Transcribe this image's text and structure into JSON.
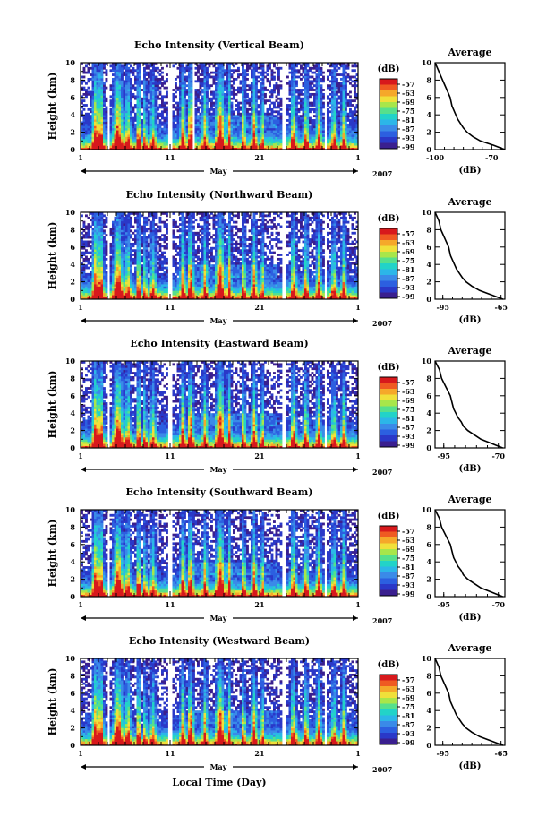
{
  "chart_data": [
    {
      "type": "heatmap",
      "title": "Echo Intensity (Vertical Beam)",
      "ylabel": "Height (km)",
      "y_ticks": [
        "0",
        "2",
        "4",
        "6",
        "8",
        "10"
      ],
      "ylim": [
        0,
        10
      ],
      "x_ticks": [
        "1",
        "11",
        "21",
        "1"
      ],
      "month_label": "May",
      "year_label": "2007",
      "colorbar_unit": "(dB)",
      "colorbar_ticks": [
        "-57",
        "-63",
        "-69",
        "-75",
        "-81",
        "-87",
        "-93",
        "-99"
      ],
      "data_gaps_days": [
        [
          4.0,
          4.3
        ],
        [
          10.8,
          11.3
        ],
        [
          13.6,
          13.8
        ],
        [
          23.6,
          24.0
        ],
        [
          28.3,
          28.6
        ]
      ],
      "average": {
        "title": "Average",
        "xlabel": "(dB)",
        "x_ticks": [
          "-100",
          "-70"
        ],
        "xlim": [
          -100,
          -63
        ],
        "height_km": [
          0,
          0.5,
          1,
          1.5,
          2,
          2.5,
          3,
          3.5,
          4,
          4.5,
          5,
          5.5,
          6,
          6.5,
          7,
          7.5,
          8,
          8.5,
          9,
          9.5,
          10
        ],
        "values_db": [
          -63,
          -69,
          -76,
          -80,
          -83,
          -85,
          -86.5,
          -88,
          -89,
          -90,
          -91,
          -91.5,
          -92,
          -93,
          -94,
          -95,
          -96,
          -97,
          -98,
          -99,
          -100
        ]
      }
    },
    {
      "type": "heatmap",
      "title": "Echo Intensity (Northward Beam)",
      "ylabel": "Height (km)",
      "y_ticks": [
        "0",
        "2",
        "4",
        "6",
        "8",
        "10"
      ],
      "ylim": [
        0,
        10
      ],
      "x_ticks": [
        "1",
        "11",
        "21",
        "1"
      ],
      "month_label": "May",
      "year_label": "2007",
      "colorbar_unit": "(dB)",
      "colorbar_ticks": [
        "-57",
        "-63",
        "-69",
        "-75",
        "-81",
        "-87",
        "-93",
        "-99"
      ],
      "data_gaps_days": [
        [
          4.0,
          4.3
        ],
        [
          10.8,
          11.3
        ],
        [
          23.6,
          24.0
        ],
        [
          28.3,
          28.6
        ]
      ],
      "average": {
        "title": "Average",
        "xlabel": "(dB)",
        "x_ticks": [
          "-95",
          "-65"
        ],
        "xlim": [
          -99,
          -63
        ],
        "height_km": [
          0,
          0.5,
          1,
          1.5,
          2,
          2.5,
          3,
          3.5,
          4,
          4.5,
          5,
          5.5,
          6,
          6.5,
          7,
          7.5,
          8,
          8.5,
          9,
          9.5,
          10
        ],
        "values_db": [
          -64,
          -70,
          -76,
          -80,
          -83,
          -85,
          -86.5,
          -88,
          -89,
          -90,
          -91,
          -91.5,
          -92,
          -93,
          -94,
          -95,
          -96,
          -96.5,
          -97,
          -98,
          -99
        ]
      }
    },
    {
      "type": "heatmap",
      "title": "Echo Intensity (Eastward Beam)",
      "ylabel": "Height (km)",
      "y_ticks": [
        "0",
        "2",
        "4",
        "6",
        "8",
        "10"
      ],
      "ylim": [
        0,
        10
      ],
      "x_ticks": [
        "1",
        "11",
        "21",
        "1"
      ],
      "month_label": "May",
      "year_label": "2007",
      "colorbar_unit": "(dB)",
      "colorbar_ticks": [
        "-57",
        "-63",
        "-69",
        "-75",
        "-81",
        "-87",
        "-93",
        "-99"
      ],
      "data_gaps_days": [
        [
          4.0,
          4.3
        ],
        [
          10.8,
          11.3
        ],
        [
          23.6,
          24.0
        ],
        [
          28.3,
          28.6
        ]
      ],
      "average": {
        "title": "Average",
        "xlabel": "(dB)",
        "x_ticks": [
          "-95",
          "-70"
        ],
        "xlim": [
          -99,
          -67
        ],
        "height_km": [
          0,
          0.5,
          1,
          1.5,
          2,
          2.5,
          3,
          3.5,
          4,
          4.5,
          5,
          5.5,
          6,
          6.5,
          7,
          7.5,
          8,
          8.5,
          9,
          9.5,
          10
        ],
        "values_db": [
          -68,
          -73,
          -78,
          -81,
          -84,
          -86,
          -87,
          -88.5,
          -89.5,
          -90.5,
          -91,
          -91.5,
          -92,
          -93,
          -94,
          -95,
          -96,
          -96.5,
          -97,
          -98,
          -99
        ]
      }
    },
    {
      "type": "heatmap",
      "title": "Echo Intensity (Southward Beam)",
      "ylabel": "Height (km)",
      "y_ticks": [
        "0",
        "2",
        "4",
        "6",
        "8",
        "10"
      ],
      "ylim": [
        0,
        10
      ],
      "x_ticks": [
        "1",
        "11",
        "21",
        "1"
      ],
      "month_label": "May",
      "year_label": "2007",
      "colorbar_unit": "(dB)",
      "colorbar_ticks": [
        "-57",
        "-63",
        "-69",
        "-75",
        "-81",
        "-87",
        "-93",
        "-99"
      ],
      "data_gaps_days": [
        [
          4.0,
          4.3
        ],
        [
          10.8,
          11.3
        ],
        [
          23.6,
          24.0
        ],
        [
          28.3,
          28.6
        ]
      ],
      "average": {
        "title": "Average",
        "xlabel": "(dB)",
        "x_ticks": [
          "-95",
          "-70"
        ],
        "xlim": [
          -99,
          -67
        ],
        "height_km": [
          0,
          0.5,
          1,
          1.5,
          2,
          2.5,
          3,
          3.5,
          4,
          4.5,
          5,
          5.5,
          6,
          6.5,
          7,
          7.5,
          8,
          8.5,
          9,
          9.5,
          10
        ],
        "values_db": [
          -68,
          -73,
          -78,
          -81,
          -84,
          -86,
          -87,
          -88.5,
          -89.5,
          -90.5,
          -91,
          -91.5,
          -92,
          -93,
          -94,
          -95,
          -96,
          -96.5,
          -97,
          -98,
          -99
        ]
      }
    },
    {
      "type": "heatmap",
      "title": "Echo Intensity (Westward Beam)",
      "ylabel": "Height (km)",
      "xlabel": "Local Time (Day)",
      "y_ticks": [
        "0",
        "2",
        "4",
        "6",
        "8",
        "10"
      ],
      "ylim": [
        0,
        10
      ],
      "x_ticks": [
        "1",
        "11",
        "21",
        "1"
      ],
      "month_label": "May",
      "year_label": "2007",
      "colorbar_unit": "(dB)",
      "colorbar_ticks": [
        "-57",
        "-63",
        "-69",
        "-75",
        "-81",
        "-87",
        "-93",
        "-99"
      ],
      "data_gaps_days": [
        [
          4.0,
          4.3
        ],
        [
          10.8,
          11.3
        ],
        [
          23.6,
          24.0
        ],
        [
          28.3,
          28.6
        ]
      ],
      "average": {
        "title": "Average",
        "xlabel": "(dB)",
        "x_ticks": [
          "-95",
          "-65"
        ],
        "xlim": [
          -99,
          -63
        ],
        "height_km": [
          0,
          0.5,
          1,
          1.5,
          2,
          2.5,
          3,
          3.5,
          4,
          4.5,
          5,
          5.5,
          6,
          6.5,
          7,
          7.5,
          8,
          8.5,
          9,
          9.5,
          10
        ],
        "values_db": [
          -64,
          -70,
          -76,
          -80,
          -83,
          -85,
          -86.5,
          -88,
          -89,
          -90,
          -91,
          -91.5,
          -92,
          -93,
          -94,
          -95,
          -96,
          -96.5,
          -97,
          -98,
          -99
        ]
      }
    }
  ],
  "colors": {
    "colormap": [
      "#3a1f8f",
      "#2a38c8",
      "#2c5fe0",
      "#3a8ae8",
      "#2cb6e8",
      "#22d3c8",
      "#56e08c",
      "#a8e64a",
      "#f0e03a",
      "#f5a82a",
      "#ef5a22",
      "#d7191c"
    ]
  }
}
